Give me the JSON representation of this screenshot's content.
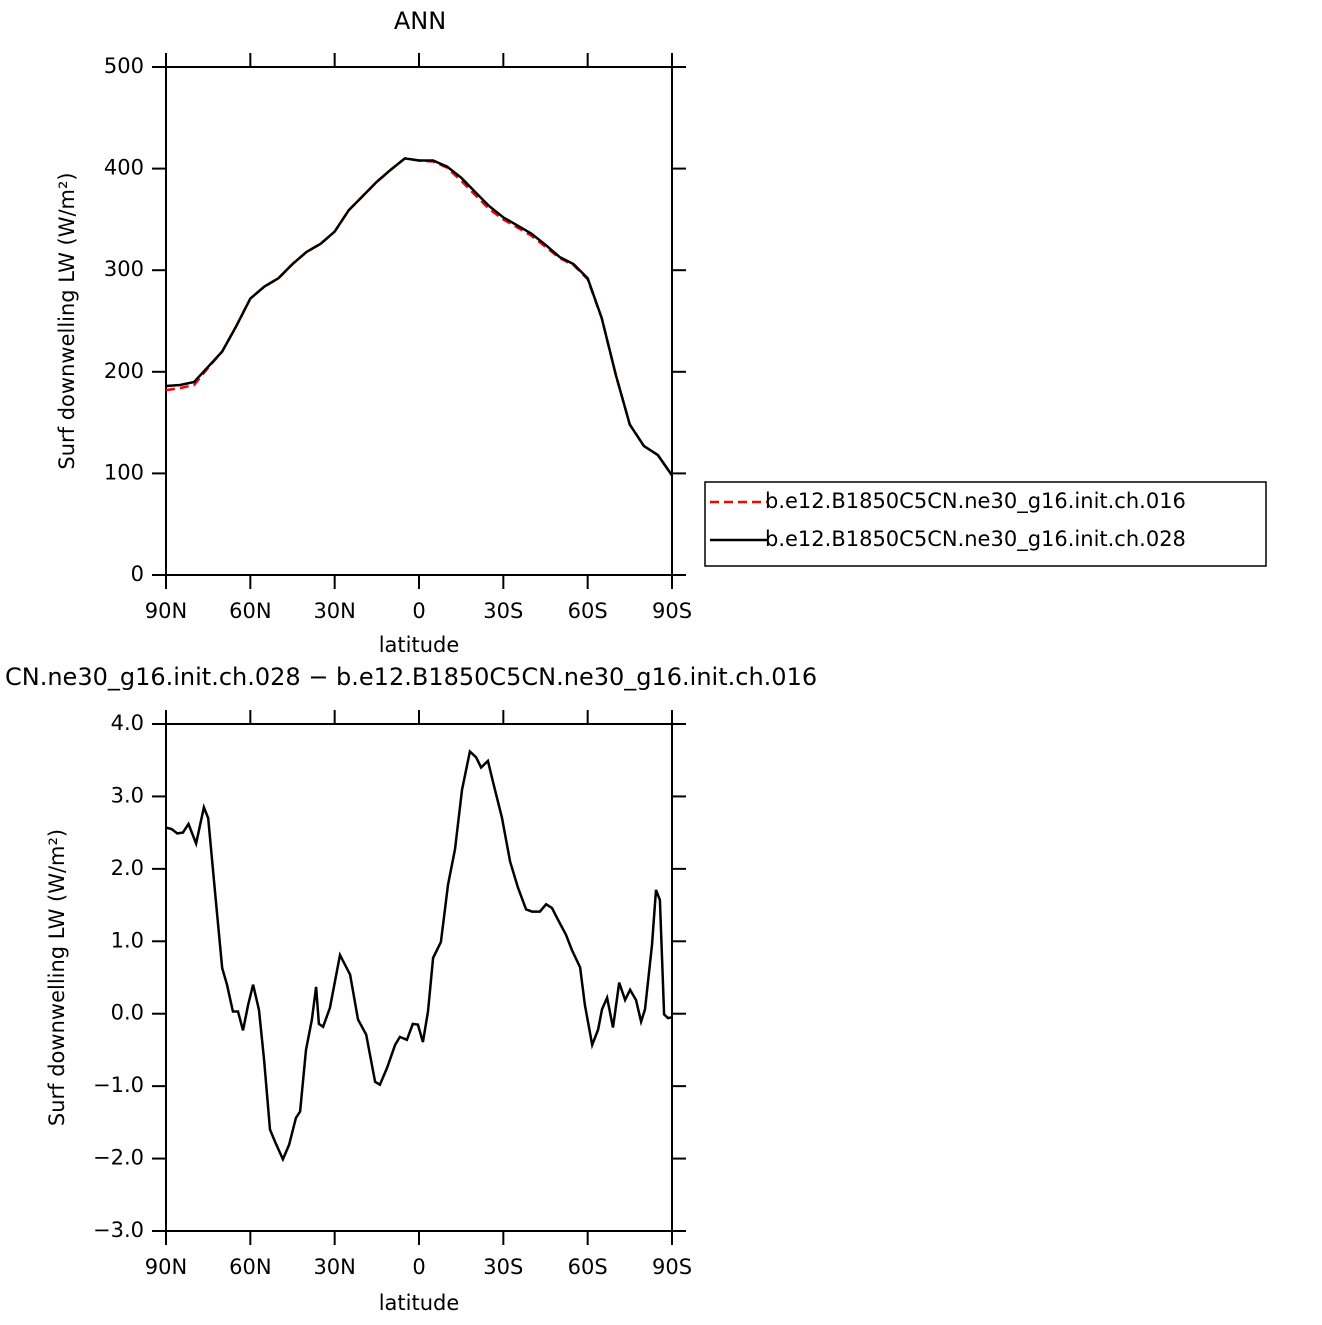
{
  "chart_data": [
    {
      "type": "line",
      "title": "ANN",
      "xlabel": "latitude",
      "ylabel": "Surf  downwelling LW (W/m²)",
      "x": [
        90,
        85,
        80,
        75,
        70,
        65,
        60,
        55,
        50,
        45,
        40,
        35,
        30,
        25,
        20,
        15,
        10,
        5,
        0,
        -5,
        -10,
        -15,
        -20,
        -25,
        -30,
        -35,
        -40,
        -45,
        -50,
        -55,
        -60,
        -65,
        -70,
        -75,
        -80,
        -85,
        -90
      ],
      "series": [
        {
          "name": "b.e12.B1850C5CN.ne30_g16.init.ch.016",
          "color": "#ff0000",
          "linestyle": "dashed",
          "values": [
            182,
            184,
            187,
            204,
            220,
            245,
            272,
            284,
            292,
            306,
            318,
            326,
            338,
            359,
            373,
            387,
            399,
            410,
            408,
            407,
            401,
            388,
            374,
            360,
            350,
            342,
            334,
            323,
            312,
            305,
            291,
            253,
            197,
            148,
            127,
            118,
            98
          ]
        },
        {
          "name": "b.e12.B1850C5CN.ne30_g16.init.ch.028",
          "color": "#000000",
          "linestyle": "solid",
          "values": [
            186,
            187,
            190,
            205,
            220,
            245,
            272,
            284,
            292,
            306,
            318,
            326,
            338,
            359,
            373,
            387,
            399,
            410,
            408,
            408,
            402,
            391,
            377,
            363,
            352,
            344,
            336,
            325,
            313,
            306,
            292,
            253,
            197,
            148,
            127,
            118,
            98
          ]
        }
      ],
      "xlim": [
        90,
        -90
      ],
      "xticks": [
        {
          "value": 90,
          "label": "90N"
        },
        {
          "value": 60,
          "label": "60N"
        },
        {
          "value": 30,
          "label": "30N"
        },
        0,
        {
          "value": -30,
          "label": "30S"
        },
        {
          "value": -60,
          "label": "60S"
        },
        {
          "value": -90,
          "label": "90S"
        }
      ],
      "ylim": [
        0,
        500
      ],
      "yticks": [
        0,
        100,
        200,
        300,
        400,
        500
      ],
      "legend": "right"
    },
    {
      "type": "line",
      "title": "CN.ne30_g16.init.ch.028 − b.e12.B1850C5CN.ne30_g16.init.ch.016",
      "xlabel": "latitude",
      "ylabel": "Surf  downwelling LW (W/m²)",
      "x": [
        90,
        88,
        86,
        84,
        82,
        79.3,
        76.5,
        75,
        72.6,
        70,
        68.3,
        66.2,
        64.4,
        62.6,
        60.8,
        59,
        56.9,
        55.1,
        53,
        51.2,
        48.4,
        46.2,
        43.8,
        42.3,
        40.2,
        38.1,
        36.6,
        35.6,
        34.1,
        31.7,
        28.1,
        24.5,
        21.7,
        18.8,
        15.6,
        13.9,
        11.4,
        8.5,
        6.8,
        4.3,
        2.2,
        0.4,
        -1.4,
        -3.2,
        -5,
        -7.8,
        -10.3,
        -12.8,
        -15.3,
        -18.1,
        -20.3,
        -22.1,
        -24.5,
        -26.7,
        -29.5,
        -32.4,
        -35.2,
        -38.1,
        -40.2,
        -43,
        -45.2,
        -47.3,
        -49.4,
        -52.3,
        -54.4,
        -57.3,
        -59,
        -61.6,
        -63.7,
        -65.1,
        -66.9,
        -69,
        -71.2,
        -73.3,
        -75.1,
        -77.2,
        -79,
        -80.4,
        -82.9,
        -84.3,
        -85.7,
        -87.2,
        -88.6,
        -90
      ],
      "series": [
        {
          "color": "#000000",
          "linestyle": "solid",
          "values": [
            2.57,
            2.55,
            2.49,
            2.5,
            2.62,
            2.35,
            2.85,
            2.7,
            1.7,
            0.63,
            0.4,
            0.03,
            0.03,
            -0.23,
            0.12,
            0.4,
            0.05,
            -0.64,
            -1.6,
            -1.77,
            -2.01,
            -1.81,
            -1.44,
            -1.35,
            -0.5,
            -0.08,
            0.37,
            -0.14,
            -0.18,
            0.08,
            0.81,
            0.54,
            -0.08,
            -0.29,
            -0.94,
            -0.98,
            -0.75,
            -0.43,
            -0.32,
            -0.36,
            -0.14,
            -0.15,
            -0.39,
            0.03,
            0.77,
            0.99,
            1.78,
            2.27,
            3.09,
            3.62,
            3.54,
            3.4,
            3.49,
            3.14,
            2.71,
            2.1,
            1.74,
            1.44,
            1.41,
            1.41,
            1.51,
            1.46,
            1.3,
            1.09,
            0.88,
            0.64,
            0.12,
            -0.43,
            -0.22,
            0.06,
            0.22,
            -0.19,
            0.43,
            0.19,
            0.33,
            0.19,
            -0.11,
            0.06,
            0.95,
            1.71,
            1.57,
            -0.01,
            -0.06,
            -0.05
          ]
        }
      ],
      "xlim": [
        90,
        -90
      ],
      "xticks": [
        {
          "value": 90,
          "label": "90N"
        },
        {
          "value": 60,
          "label": "60N"
        },
        {
          "value": 30,
          "label": "30N"
        },
        0,
        {
          "value": -30,
          "label": "30S"
        },
        {
          "value": -60,
          "label": "60S"
        },
        {
          "value": -90,
          "label": "90S"
        }
      ],
      "ylim": [
        -3,
        4
      ],
      "yticks": [
        {
          "value": -3,
          "label": "−3.0"
        },
        {
          "value": -2,
          "label": "−2.0"
        },
        {
          "value": -1,
          "label": "−1.0"
        },
        {
          "value": 0,
          "label": "0.0"
        },
        {
          "value": 1,
          "label": "1.0"
        },
        {
          "value": 2,
          "label": "2.0"
        },
        {
          "value": 3,
          "label": "3.0"
        },
        {
          "value": 4,
          "label": "4.0"
        }
      ]
    }
  ]
}
